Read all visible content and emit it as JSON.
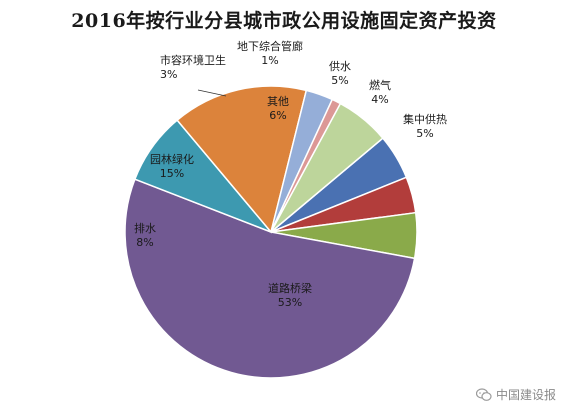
{
  "chart_data": {
    "type": "pie",
    "title": "2016年按行业分县城市政公用设施固定资产投资",
    "slices": [
      {
        "label": "供水",
        "value": 5,
        "value_text": "5%",
        "color": "#4a71b2"
      },
      {
        "label": "燃气",
        "value": 4,
        "value_text": "4%",
        "color": "#b23d3b"
      },
      {
        "label": "集中供热",
        "value": 5,
        "value_text": "5%",
        "color": "#8aaa4a"
      },
      {
        "label": "道路桥梁",
        "value": 53,
        "value_text": "53%",
        "color": "#715992"
      },
      {
        "label": "排水",
        "value": 8,
        "value_text": "8%",
        "color": "#3d99b0"
      },
      {
        "label": "园林绿化",
        "value": 15,
        "value_text": "15%",
        "color": "#dc833b"
      },
      {
        "label": "市容环境卫生",
        "value": 3,
        "value_text": "3%",
        "color": "#95aed8"
      },
      {
        "label": "地下综合管廊",
        "value": 1,
        "value_text": "1%",
        "color": "#dc9896"
      },
      {
        "label": "其他",
        "value": 6,
        "value_text": "6%",
        "color": "#bdd59b"
      }
    ]
  },
  "watermark": {
    "text": "中国建设报",
    "icon": "wechat-icon"
  }
}
